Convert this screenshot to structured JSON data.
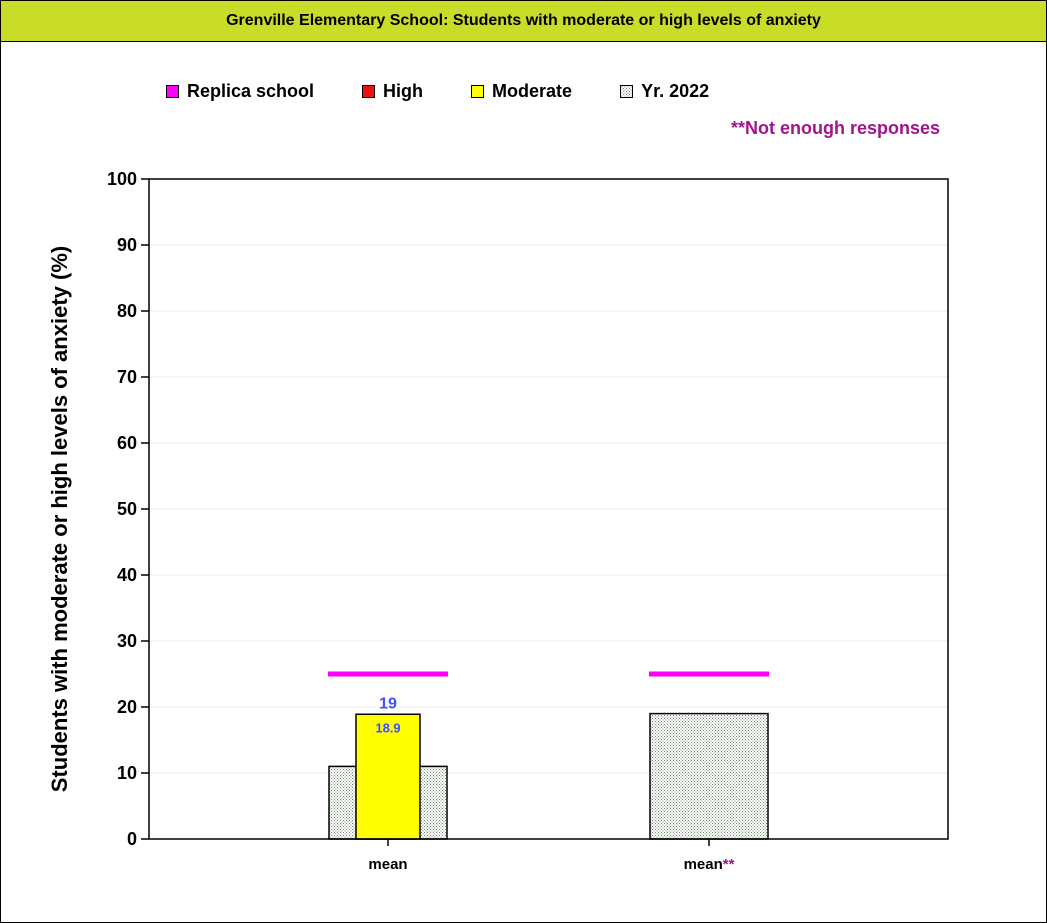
{
  "colors": {
    "title_bar": "#c8dc28",
    "replica": "#ff00ff",
    "high": "#ee1111",
    "moderate": "#ffff00",
    "year": "#c8dcc0",
    "note": "#a0148c",
    "value_label": "#3c50ff"
  },
  "chart_data": {
    "type": "bar",
    "title": "Grenville Elementary School: Students with moderate or high levels of anxiety",
    "ylabel": "Students with moderate or high levels of anxiety (%)",
    "xlabel": "",
    "ylim": [
      0,
      100
    ],
    "yticks": [
      "0",
      "10",
      "20",
      "30",
      "40",
      "50",
      "60",
      "70",
      "80",
      "90",
      "100"
    ],
    "grid": true,
    "legend_position": "top",
    "legend": [
      {
        "name": "Replica school",
        "color": "#ff00ff",
        "pattern": "solid"
      },
      {
        "name": "High",
        "color": "#ee1111",
        "pattern": "solid"
      },
      {
        "name": "Moderate",
        "color": "#ffff00",
        "pattern": "solid"
      },
      {
        "name": "Yr. 2022",
        "color": "#c8dcc0",
        "pattern": "dotted"
      }
    ],
    "note": "**Not enough responses",
    "categories": [
      {
        "label": "mean",
        "suffix": ""
      },
      {
        "label": "mean",
        "suffix": "**"
      }
    ],
    "groups": [
      {
        "category": 0,
        "yr_2022": 11,
        "moderate": 18.9,
        "high": 0,
        "replica": 25,
        "total_label": "19",
        "moderate_label": "18.9"
      },
      {
        "category": 1,
        "yr_2022": 19,
        "replica": 25
      }
    ]
  }
}
